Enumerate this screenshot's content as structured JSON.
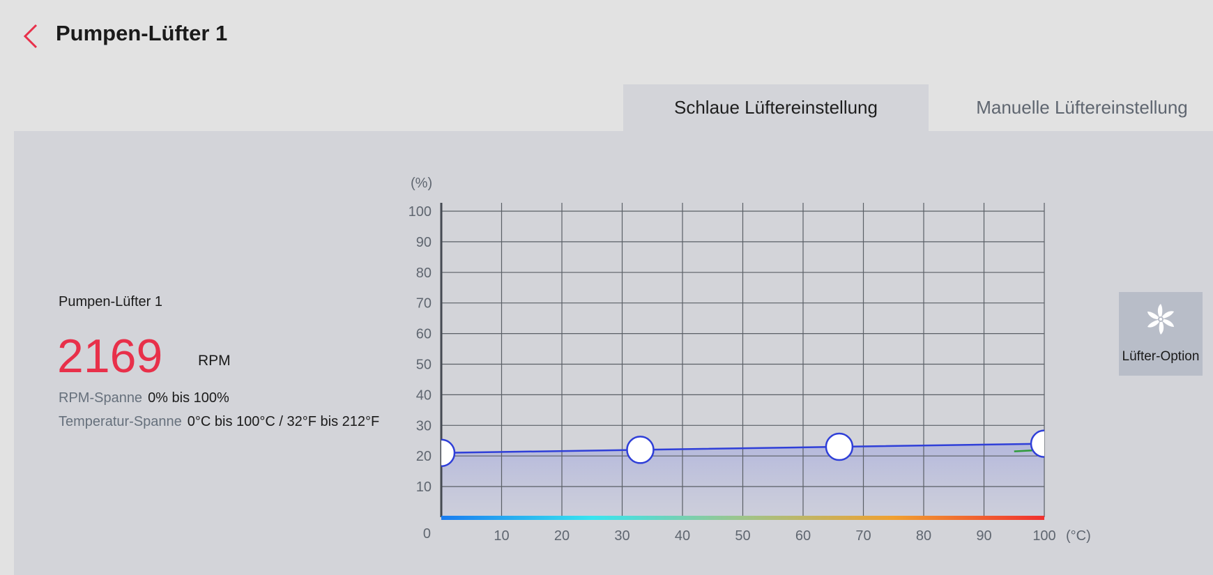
{
  "header": {
    "title": "Pumpen-Lüfter 1",
    "back_icon": "chevron-left-icon",
    "accent_color": "#e8304a"
  },
  "tabs": [
    {
      "label": "Schlaue Lüftereinstellung",
      "active": true
    },
    {
      "label": "Manuelle Lüftereinstellung",
      "active": false
    }
  ],
  "fan": {
    "name": "Pumpen-Lüfter 1",
    "rpm": "2169",
    "rpm_unit": "RPM",
    "rpm_range_label": "RPM-Spanne",
    "rpm_range_value": "0% bis 100%",
    "temp_range_label": "Temperatur-Spanne",
    "temp_range_value": "0°C bis 100°C / 32°F bis 212°F"
  },
  "fan_option": {
    "label": "Lüfter-Option",
    "icon": "fan-icon"
  },
  "chart_data": {
    "type": "line",
    "y_unit": "(%)",
    "x_unit": "(°C)",
    "y_ticks": [
      "10",
      "20",
      "30",
      "40",
      "50",
      "60",
      "70",
      "80",
      "90",
      "100"
    ],
    "x_ticks": [
      "10",
      "20",
      "30",
      "40",
      "50",
      "60",
      "70",
      "80",
      "90",
      "100"
    ],
    "origin_label": "0",
    "xlim": [
      0,
      100
    ],
    "ylim": [
      0,
      100
    ],
    "grid": true,
    "series": [
      {
        "x": [
          0,
          33,
          66,
          100
        ],
        "y": [
          21,
          22,
          23,
          24
        ]
      }
    ],
    "current_temp_x": [
      95,
      100
    ],
    "current_temp_y": [
      21.5,
      22
    ],
    "colors": {
      "curve": "#2f3fd8",
      "fill": "#b6badb",
      "grid": "#5a5f66",
      "current_temp": "#2e9a3a",
      "gradient": [
        "#1a7cf0",
        "#38e4f0",
        "#9ec48a",
        "#f0a030",
        "#f03030"
      ]
    }
  }
}
